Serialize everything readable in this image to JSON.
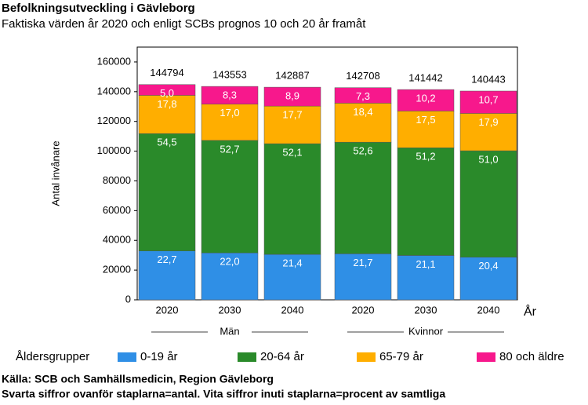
{
  "chart_data": {
    "type": "stacked_bar",
    "title": "Befolkningsutveckling i Gävleborg",
    "subtitle": "Faktiska värden år 2020 och enligt SCBs prognos 10 och 20 år framåt",
    "y_label": "Antal invånare",
    "x_label": "År",
    "categories": [
      "2020",
      "2030",
      "2040",
      "2020",
      "2030",
      "2040"
    ],
    "groups": [
      "Män",
      "Kvinnor"
    ],
    "totals": [
      144794,
      143553,
      142887,
      142708,
      141442,
      140443
    ],
    "legend_title": "Åldersgrupper",
    "series": [
      {
        "name": "0-19 år",
        "color": "#2f8fe6",
        "values": [
          32868,
          31582,
          30578,
          30968,
          29844,
          28650
        ],
        "value_labels": [
          "22,7",
          "22,0",
          "21,4",
          "21,7",
          "21,1",
          "20,4"
        ]
      },
      {
        "name": "20-64 år",
        "color": "#2a8a2a",
        "values": [
          78913,
          75652,
          74444,
          75064,
          72418,
          71626
        ],
        "value_labels": [
          "54,5",
          "52,7",
          "52,1",
          "52,6",
          "51,2",
          "51,0"
        ]
      },
      {
        "name": "65-79 år",
        "color": "#ffae00",
        "values": [
          25773,
          24404,
          25291,
          26258,
          24752,
          25139
        ],
        "value_labels": [
          "17,8",
          "17,0",
          "17,7",
          "18,4",
          "17,5",
          "17,9"
        ]
      },
      {
        "name": "80 och äldre",
        "color": "#f7188c",
        "values": [
          7240,
          11915,
          12717,
          10418,
          14427,
          15027
        ],
        "value_labels": [
          "5,0",
          "8,3",
          "8,9",
          "7,3",
          "10,2",
          "10,7"
        ]
      }
    ],
    "ylim": [
      0,
      170000
    ],
    "yticks": [
      0,
      20000,
      40000,
      60000,
      80000,
      100000,
      120000,
      140000,
      160000
    ],
    "footer": [
      "Källa: SCB och Samhällsmedicin, Region Gävleborg",
      "Svarta siffror ovanför staplarna=antal. Vita siffror inuti staplarna=procent av samtliga"
    ]
  }
}
